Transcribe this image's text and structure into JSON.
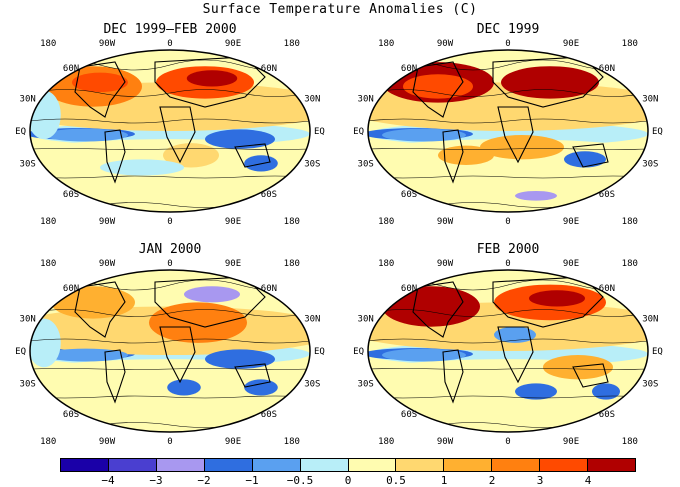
{
  "title": "Surface Temperature Anomalies (C)",
  "panels": [
    {
      "title": "DEC 1999–FEB 2000"
    },
    {
      "title": "DEC 1999"
    },
    {
      "title": "JAN 2000"
    },
    {
      "title": "FEB 2000"
    }
  ],
  "lon_labels": [
    "180",
    "90W",
    "0",
    "90E",
    "180"
  ],
  "lat_labels": [
    "60N",
    "30N",
    "EQ",
    "30S",
    "60S"
  ],
  "colorbar": {
    "colors": [
      "#1a00a8",
      "#4a3fd0",
      "#a898f0",
      "#2f6ee0",
      "#5aa0f0",
      "#b8eef8",
      "#fffcb0",
      "#ffd870",
      "#ffb030",
      "#ff8010",
      "#ff4a00",
      "#b00000"
    ],
    "labels": [
      "−4",
      "−3",
      "−2",
      "−1",
      "−0.5",
      "0",
      "0.5",
      "1",
      "2",
      "3",
      "4"
    ]
  }
}
